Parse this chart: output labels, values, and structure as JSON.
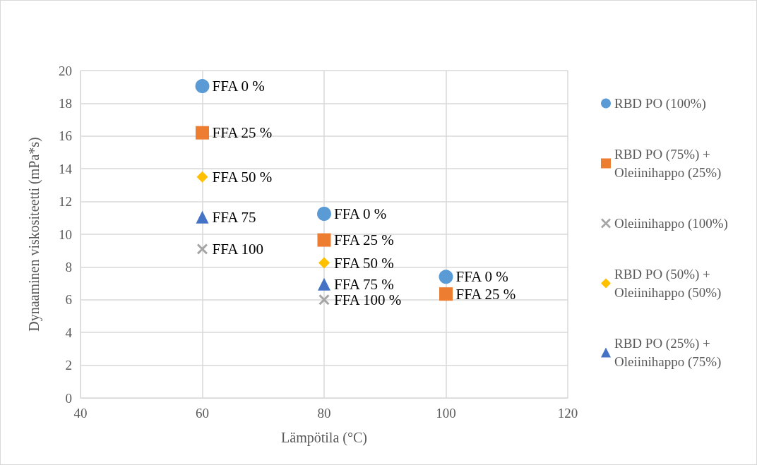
{
  "chart_data": {
    "type": "scatter",
    "xlabel": "Lämpötila (°C)",
    "ylabel": "Dynaaminen viskositeetti (mPa*s)",
    "xlim": [
      40,
      120
    ],
    "xticks": [
      40,
      60,
      80,
      100,
      120
    ],
    "ylim": [
      0,
      20
    ],
    "yticks": [
      0,
      2,
      4,
      6,
      8,
      10,
      12,
      14,
      16,
      18,
      20
    ],
    "grid": true,
    "legend": "right",
    "series": [
      {
        "name": "RBD PO (100%)",
        "color": "#5b9bd5",
        "marker": "circle",
        "x": [
          60,
          80,
          100
        ],
        "values": [
          19.05,
          11.25,
          7.4
        ]
      },
      {
        "name": "RBD PO (75%) + Oleiinihappo (25%)",
        "color": "#ed7d31",
        "marker": "square",
        "x": [
          60,
          80,
          100
        ],
        "values": [
          16.2,
          9.65,
          6.35
        ]
      },
      {
        "name": "Oleiinihappo (100%)",
        "color": "#a5a5a5",
        "marker": "cross",
        "x": [
          60,
          80
        ],
        "values": [
          9.1,
          6.0
        ]
      },
      {
        "name": "RBD PO (50%) + Oleiinihappo (50%)",
        "color": "#ffc000",
        "marker": "diamond",
        "x": [
          60,
          80
        ],
        "values": [
          13.5,
          8.25
        ]
      },
      {
        "name": "RBD PO (25%) + Oleiinihappo (75%)",
        "color": "#4472c4",
        "marker": "triangle",
        "x": [
          60,
          80
        ],
        "values": [
          11.05,
          6.95
        ]
      }
    ],
    "annotations": [
      {
        "text": "FFA 0 %",
        "x": 60,
        "y": 19.05
      },
      {
        "text": "FFA 25 %",
        "x": 60,
        "y": 16.2
      },
      {
        "text": "FFA 50 %",
        "x": 60,
        "y": 13.5
      },
      {
        "text": "FFA 75",
        "x": 60,
        "y": 11.05
      },
      {
        "text": "FFA 100",
        "x": 60,
        "y": 9.1
      },
      {
        "text": "FFA 0 %",
        "x": 80,
        "y": 11.25
      },
      {
        "text": "FFA 25 %",
        "x": 80,
        "y": 9.65
      },
      {
        "text": "FFA 50 %",
        "x": 80,
        "y": 8.25
      },
      {
        "text": "FFA 75 %",
        "x": 80,
        "y": 6.95
      },
      {
        "text": "FFA 100 %",
        "x": 80,
        "y": 6.0
      },
      {
        "text": "FFA 0 %",
        "x": 100,
        "y": 7.4
      },
      {
        "text": "FFA 25 %",
        "x": 100,
        "y": 6.35
      }
    ]
  }
}
